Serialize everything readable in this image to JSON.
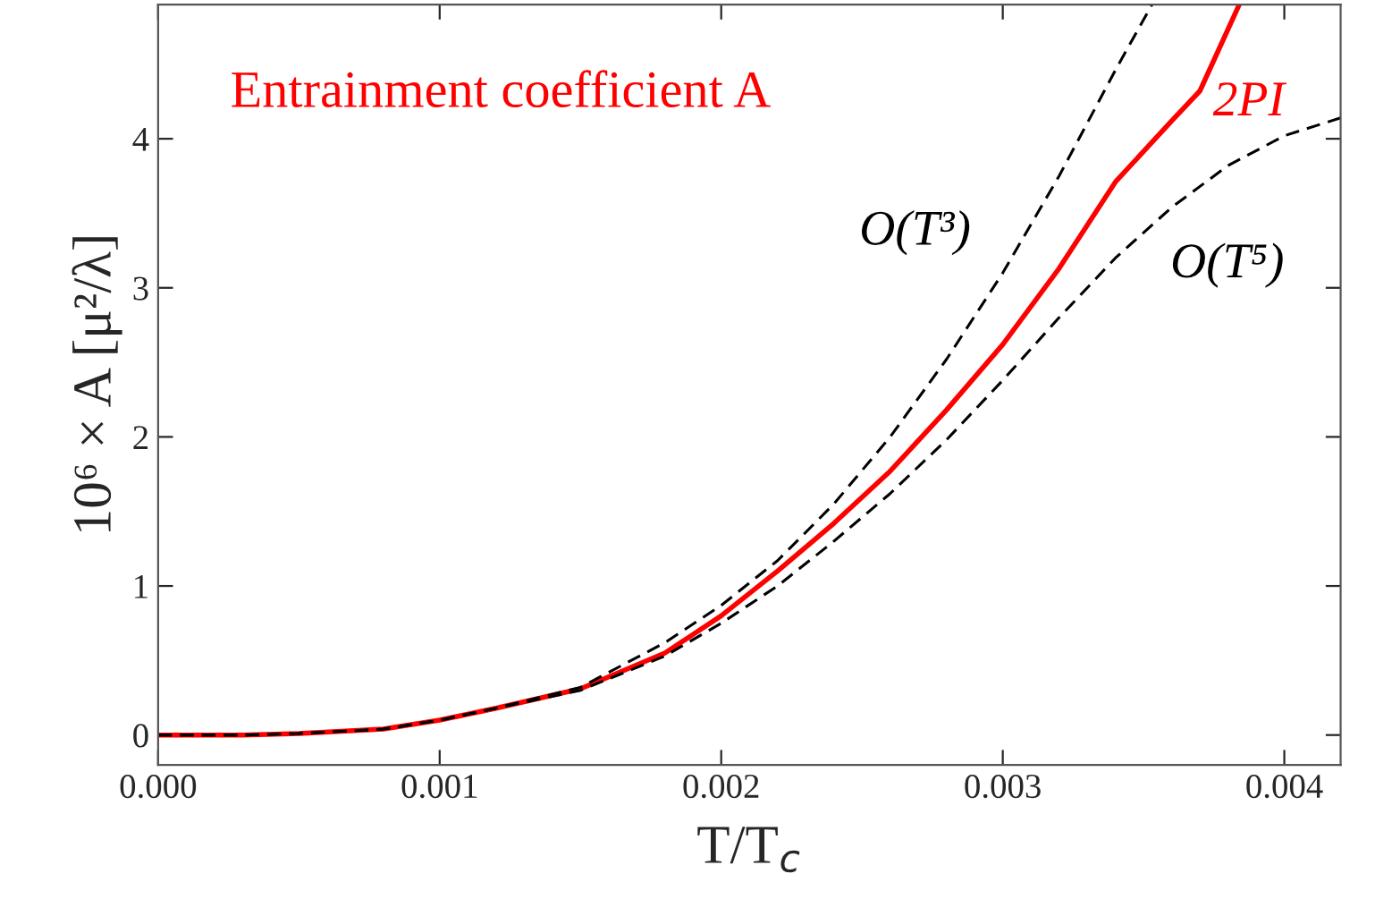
{
  "chart_data": {
    "type": "line",
    "title": "Entrainment coefficient A",
    "xlabel": "T/T$_{c}$",
    "ylabel": "10⁶ × A [μ²/λ]",
    "xlim": [
      0,
      0.0042
    ],
    "ylim": [
      -0.2,
      4.9
    ],
    "xticks": [
      {
        "value": 0,
        "label": "0.000"
      },
      {
        "value": 0.001,
        "label": "0.001"
      },
      {
        "value": 0.002,
        "label": "0.002"
      },
      {
        "value": 0.003,
        "label": "0.003"
      },
      {
        "value": 0.004,
        "label": "0.004"
      }
    ],
    "yticks": [
      0,
      1,
      2,
      3,
      4
    ],
    "grid": false,
    "legend": false,
    "series": [
      {
        "name": "2PI",
        "color": "#ff0000",
        "line_style": "solid",
        "x": [
          0,
          0.0003,
          0.0005,
          0.0008,
          0.001,
          0.0012,
          0.0015,
          0.0018,
          0.002,
          0.0022,
          0.0024,
          0.0026,
          0.0028,
          0.003,
          0.0032,
          0.0034,
          0.0036,
          0.0037,
          0.00384
        ],
        "values": [
          0,
          0,
          0.01,
          0.04,
          0.1,
          0.18,
          0.31,
          0.55,
          0.8,
          1.1,
          1.42,
          1.77,
          2.18,
          2.62,
          3.13,
          3.71,
          4.12,
          4.32,
          4.9
        ]
      },
      {
        "name": "O(T³)",
        "color": "#000000",
        "line_style": "dashed",
        "x": [
          0,
          0.0003,
          0.0005,
          0.0008,
          0.001,
          0.0012,
          0.0015,
          0.0018,
          0.002,
          0.0022,
          0.0024,
          0.0026,
          0.0028,
          0.003,
          0.0032,
          0.0034,
          0.00353
        ],
        "values": [
          0,
          0,
          0.01,
          0.04,
          0.1,
          0.18,
          0.32,
          0.62,
          0.87,
          1.17,
          1.55,
          2.0,
          2.52,
          3.1,
          3.75,
          4.46,
          4.9
        ]
      },
      {
        "name": "O(T⁵)",
        "color": "#000000",
        "line_style": "dashed",
        "x": [
          0,
          0.0003,
          0.0005,
          0.0008,
          0.001,
          0.0012,
          0.0015,
          0.0018,
          0.002,
          0.0022,
          0.0024,
          0.0026,
          0.0028,
          0.003,
          0.0032,
          0.0034,
          0.0036,
          0.0038,
          0.004,
          0.0042
        ],
        "values": [
          0,
          0,
          0.01,
          0.04,
          0.1,
          0.18,
          0.3,
          0.53,
          0.75,
          1.0,
          1.3,
          1.62,
          1.98,
          2.38,
          2.8,
          3.2,
          3.54,
          3.82,
          4.02,
          4.14
        ]
      }
    ]
  }
}
